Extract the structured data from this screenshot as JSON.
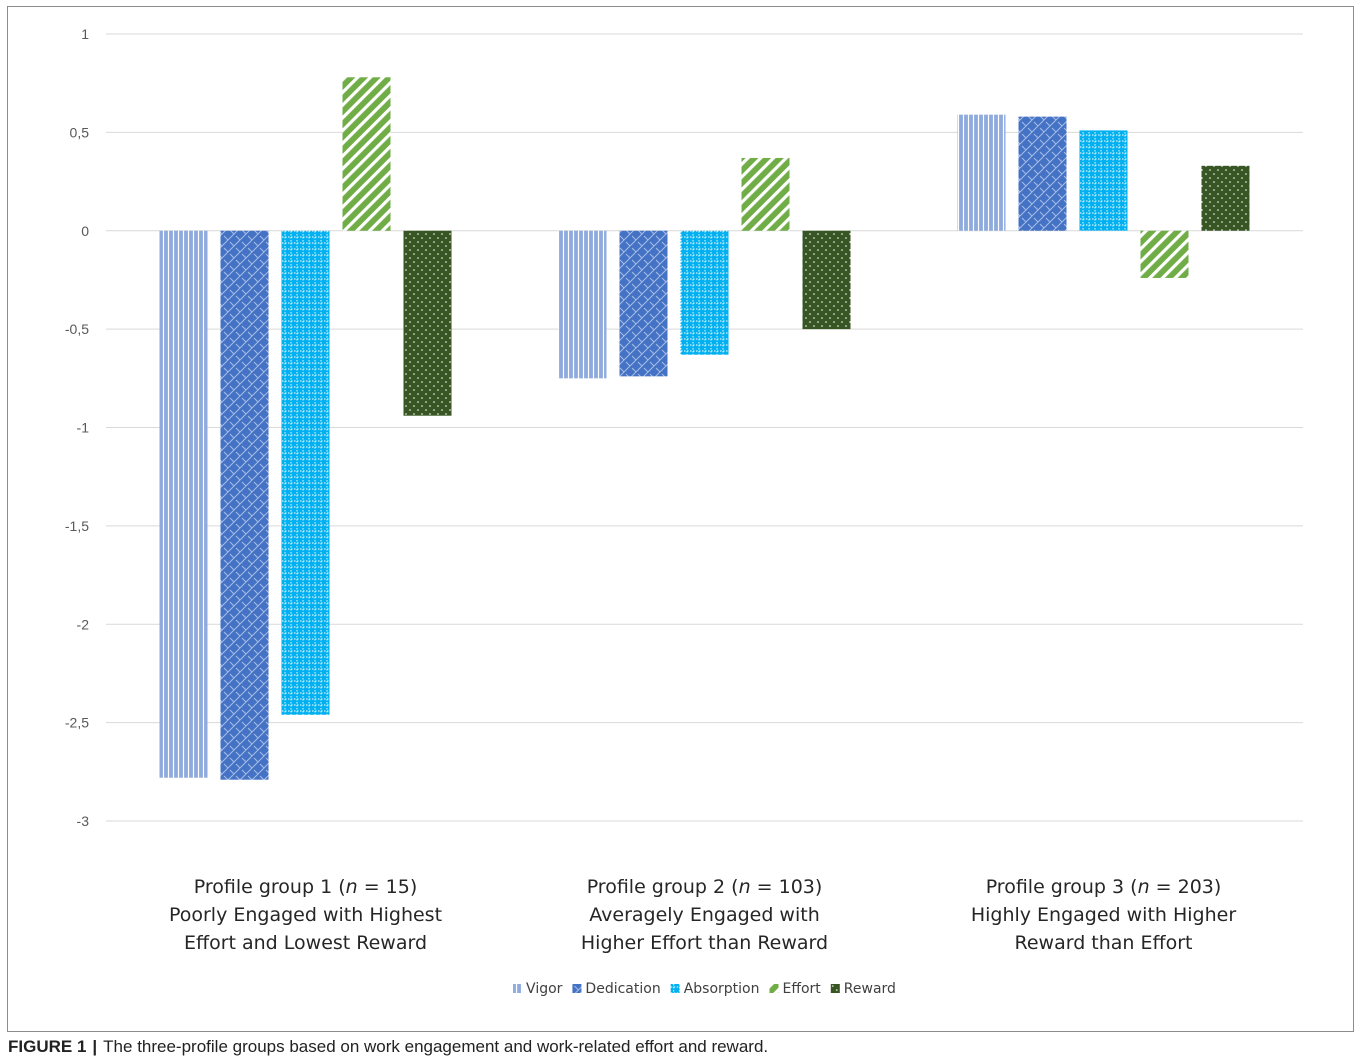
{
  "chart_data": {
    "type": "bar",
    "categories": [
      [
        "Profile group 1 (",
        "n",
        " = 15)",
        "Poorly Engaged with Highest",
        "Effort and Lowest Reward"
      ],
      [
        "Profile group 2 (",
        "n",
        " = 103)",
        "Averagely Engaged with",
        "Higher Effort than Reward"
      ],
      [
        "Profile group 3 (",
        "n",
        " = 203)",
        "Highly Engaged with Higher",
        "Reward than Effort"
      ]
    ],
    "series": [
      {
        "name": "Vigor",
        "values": [
          -2.78,
          -0.75,
          0.59
        ],
        "color": "#8faadc",
        "pattern": "vertical-lines"
      },
      {
        "name": "Dedication",
        "values": [
          -2.79,
          -0.74,
          0.58
        ],
        "color": "#4472c4",
        "pattern": "weave"
      },
      {
        "name": "Absorption",
        "values": [
          -2.46,
          -0.63,
          0.51
        ],
        "color": "#00b0f0",
        "pattern": "grid-dots"
      },
      {
        "name": "Effort",
        "values": [
          0.78,
          0.37,
          -0.24
        ],
        "color": "#70ad47",
        "pattern": "diagonal-stripes"
      },
      {
        "name": "Reward",
        "values": [
          -0.94,
          -0.5,
          0.33
        ],
        "color": "#375623",
        "pattern": "dots"
      }
    ],
    "ylim": [
      -3,
      1
    ],
    "yticks": [
      "1",
      "0,5",
      "0",
      "-0,5",
      "-1",
      "-1,5",
      "-2",
      "-2,5",
      "-3"
    ],
    "grid": true,
    "legend_position": "bottom"
  },
  "caption": {
    "label": "FIGURE 1",
    "separator": "|",
    "text": "The three-profile groups based on work engagement and work-related effort and reward."
  }
}
